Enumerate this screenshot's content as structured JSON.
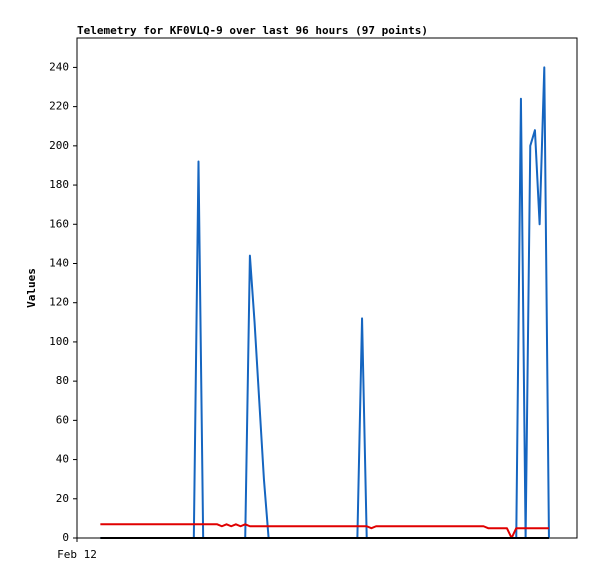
{
  "chart_data": {
    "type": "line",
    "title": "Telemetry for KF0VLQ-9 over last 96 hours (97 points)",
    "y_label": "Values",
    "x": [
      5,
      6,
      7,
      8,
      9,
      10,
      11,
      12,
      13,
      14,
      15,
      16,
      17,
      18,
      19,
      20,
      21,
      22,
      23,
      24,
      25,
      26,
      27,
      28,
      29,
      30,
      31,
      32,
      33,
      34,
      35,
      36,
      37,
      38,
      39,
      40,
      41,
      42,
      43,
      44,
      45,
      46,
      47,
      48,
      49,
      50,
      51,
      52,
      53,
      54,
      55,
      56,
      57,
      58,
      59,
      60,
      61,
      62,
      63,
      64,
      65,
      66,
      67,
      68,
      69,
      70,
      71,
      72,
      73,
      74,
      75,
      76,
      77,
      78,
      79,
      80,
      81,
      82,
      83,
      84,
      85,
      86,
      87,
      88,
      89,
      90,
      91,
      92,
      93,
      94,
      95,
      96,
      97,
      98,
      99,
      100,
      101
    ],
    "xlim": [
      0,
      107
    ],
    "xticks": [
      {
        "value": 0,
        "label": "Feb 12"
      }
    ],
    "ylim": [
      0,
      255
    ],
    "yticks": [
      0,
      20,
      40,
      60,
      80,
      100,
      120,
      140,
      160,
      180,
      200,
      220,
      240
    ],
    "series": [
      {
        "color": "#1565c0",
        "values": [
          0,
          0,
          0,
          0,
          0,
          0,
          0,
          0,
          0,
          0,
          0,
          0,
          0,
          0,
          0,
          0,
          0,
          0,
          0,
          0,
          0,
          192,
          0,
          0,
          0,
          0,
          0,
          0,
          0,
          0,
          0,
          0,
          144,
          110,
          70,
          30,
          0,
          0,
          0,
          0,
          0,
          0,
          0,
          0,
          0,
          0,
          0,
          0,
          0,
          0,
          0,
          0,
          0,
          0,
          0,
          0,
          112,
          0,
          0,
          0,
          0,
          0,
          0,
          0,
          0,
          0,
          0,
          0,
          0,
          0,
          0,
          0,
          0,
          0,
          0,
          0,
          0,
          0,
          0,
          0,
          0,
          0,
          0,
          0,
          0,
          0,
          0,
          0,
          0,
          0,
          224,
          0,
          200,
          208,
          160,
          240,
          0
        ]
      },
      {
        "color": "#e00000",
        "values": [
          7,
          7,
          7,
          7,
          7,
          7,
          7,
          7,
          7,
          7,
          7,
          7,
          7,
          7,
          7,
          7,
          7,
          7,
          7,
          7,
          7,
          7,
          7,
          7,
          7,
          7,
          6,
          7,
          6,
          7,
          6,
          7,
          6,
          6,
          6,
          6,
          6,
          6,
          6,
          6,
          6,
          6,
          6,
          6,
          6,
          6,
          6,
          6,
          6,
          6,
          6,
          6,
          6,
          6,
          6,
          6,
          6,
          6,
          5,
          6,
          6,
          6,
          6,
          6,
          6,
          6,
          6,
          6,
          6,
          6,
          6,
          6,
          6,
          6,
          6,
          6,
          6,
          6,
          6,
          6,
          6,
          6,
          6,
          5,
          5,
          5,
          5,
          5,
          0,
          5,
          5,
          5,
          5,
          5,
          5,
          5,
          5
        ]
      },
      {
        "color": "#000000",
        "values": [
          0,
          0,
          0,
          0,
          0,
          0,
          0,
          0,
          0,
          0,
          0,
          0,
          0,
          0,
          0,
          0,
          0,
          0,
          0,
          0,
          0,
          0,
          0,
          0,
          0,
          0,
          0,
          0,
          0,
          0,
          0,
          0,
          0,
          0,
          0,
          0,
          0,
          0,
          0,
          0,
          0,
          0,
          0,
          0,
          0,
          0,
          0,
          0,
          0,
          0,
          0,
          0,
          0,
          0,
          0,
          0,
          0,
          0,
          0,
          0,
          0,
          0,
          0,
          0,
          0,
          0,
          0,
          0,
          0,
          0,
          0,
          0,
          0,
          0,
          0,
          0,
          0,
          0,
          0,
          0,
          0,
          0,
          0,
          0,
          0,
          0,
          0,
          0,
          0,
          0,
          0,
          0,
          0,
          0,
          0,
          0,
          0
        ]
      }
    ]
  }
}
